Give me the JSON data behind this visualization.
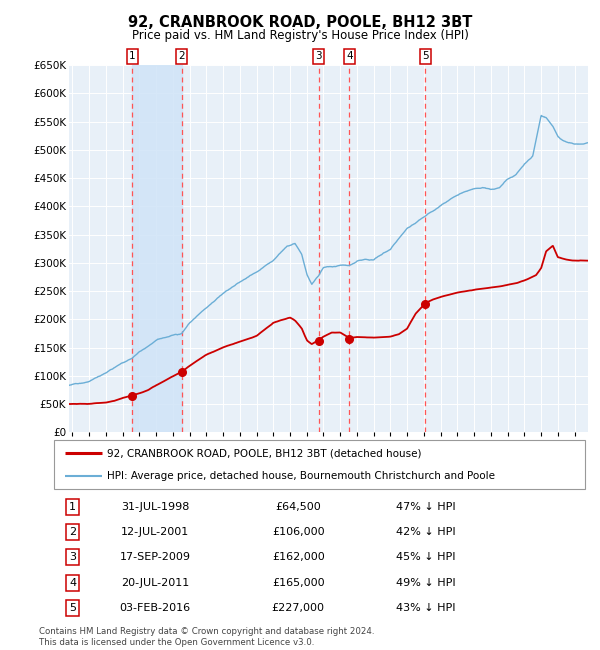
{
  "title": "92, CRANBROOK ROAD, POOLE, BH12 3BT",
  "subtitle": "Price paid vs. HM Land Registry's House Price Index (HPI)",
  "background_color": "#ffffff",
  "chart_bg_color": "#e8f0f8",
  "grid_color": "#ffffff",
  "ylim": [
    0,
    650000
  ],
  "yticks": [
    0,
    50000,
    100000,
    150000,
    200000,
    250000,
    300000,
    350000,
    400000,
    450000,
    500000,
    550000,
    600000,
    650000
  ],
  "ytick_labels": [
    "£0",
    "£50K",
    "£100K",
    "£150K",
    "£200K",
    "£250K",
    "£300K",
    "£350K",
    "£400K",
    "£450K",
    "£500K",
    "£550K",
    "£600K",
    "£650K"
  ],
  "hpi_color": "#6baed6",
  "price_color": "#cc0000",
  "marker_color": "#cc0000",
  "vline_color": "#ff5555",
  "shade_color": "#d0e4f7",
  "sales": [
    {
      "label": "1",
      "date_str": "31-JUL-1998",
      "date_x": 1998.58,
      "price": 64500
    },
    {
      "label": "2",
      "date_str": "12-JUL-2001",
      "date_x": 2001.53,
      "price": 106000
    },
    {
      "label": "3",
      "date_str": "17-SEP-2009",
      "date_x": 2009.71,
      "price": 162000
    },
    {
      "label": "4",
      "date_str": "20-JUL-2011",
      "date_x": 2011.55,
      "price": 165000
    },
    {
      "label": "5",
      "date_str": "03-FEB-2016",
      "date_x": 2016.09,
      "price": 227000
    }
  ],
  "legend_red": "92, CRANBROOK ROAD, POOLE, BH12 3BT (detached house)",
  "legend_blue": "HPI: Average price, detached house, Bournemouth Christchurch and Poole",
  "table_rows": [
    [
      "1",
      "31-JUL-1998",
      "£64,500",
      "47% ↓ HPI"
    ],
    [
      "2",
      "12-JUL-2001",
      "£106,000",
      "42% ↓ HPI"
    ],
    [
      "3",
      "17-SEP-2009",
      "£162,000",
      "45% ↓ HPI"
    ],
    [
      "4",
      "20-JUL-2011",
      "£165,000",
      "49% ↓ HPI"
    ],
    [
      "5",
      "03-FEB-2016",
      "£227,000",
      "43% ↓ HPI"
    ]
  ],
  "footer": "Contains HM Land Registry data © Crown copyright and database right 2024.\nThis data is licensed under the Open Government Licence v3.0.",
  "xmin": 1994.8,
  "xmax": 2025.8
}
